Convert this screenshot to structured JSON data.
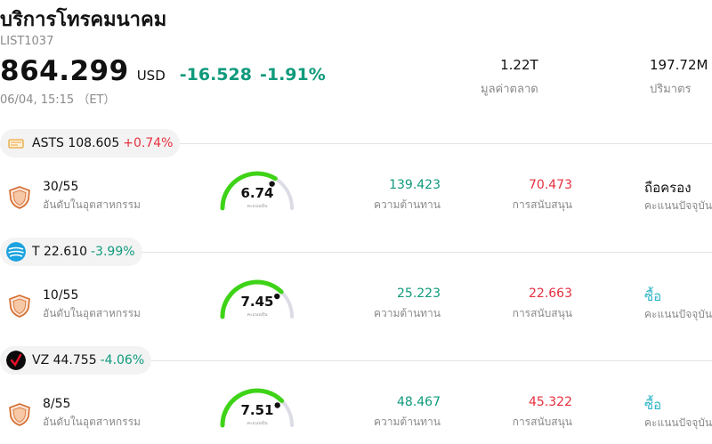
{
  "header": {
    "name": "บริการโทรคมนาคม",
    "code": "LIST1037",
    "price": "864.299",
    "currency": "USD",
    "change": "-16.528",
    "change_pct": "-1.91%",
    "timestamp": "06/04, 15:15 （ET）"
  },
  "stats": {
    "market_cap_value": "1.22T",
    "market_cap_label": "มูลค่าตลาด",
    "volume_value": "197.72M",
    "volume_label": "ปริมาตร"
  },
  "labels": {
    "rank_label": "อันดับในอุตสาหกรรม",
    "gauge_sub": "คะแนนหุ้น",
    "resistance_label": "ความต้านทาน",
    "support_label": "การสนับสนุน",
    "rating_label": "คะแนนปัจจุบัน"
  },
  "colors": {
    "up": "#e5303f",
    "down": "#0f9a7c",
    "buy": "#2bb3c6",
    "gauge_fill": "#3fd318",
    "gauge_track": "#dcdce6"
  },
  "stocks": [
    {
      "symbol": "ASTS",
      "price": "108.605",
      "change_pct": "+0.74%",
      "direction": "up",
      "logo_icon": "asts-logo-icon",
      "rank": "30/55",
      "score": 6.74,
      "score_text": "6.74",
      "resistance": "139.423",
      "support": "70.473",
      "rating": "ถือครอง",
      "rating_type": "hold"
    },
    {
      "symbol": "T",
      "price": "22.610",
      "change_pct": "-3.99%",
      "direction": "down",
      "logo_icon": "att-globe-logo-icon",
      "rank": "10/55",
      "score": 7.45,
      "score_text": "7.45",
      "resistance": "25.223",
      "support": "22.663",
      "rating": "ซื้อ",
      "rating_type": "buy"
    },
    {
      "symbol": "VZ",
      "price": "44.755",
      "change_pct": "-4.06%",
      "direction": "down",
      "logo_icon": "verizon-check-logo-icon",
      "rank": "8/55",
      "score": 7.51,
      "score_text": "7.51",
      "resistance": "48.467",
      "support": "45.322",
      "rating": "ซื้อ",
      "rating_type": "buy"
    }
  ]
}
